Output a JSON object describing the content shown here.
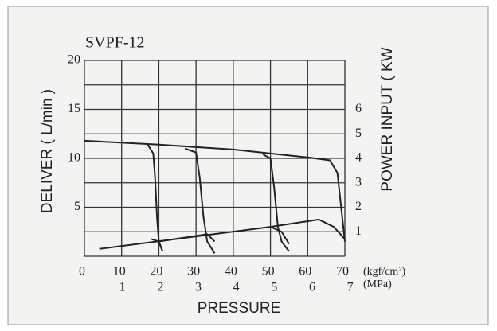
{
  "chart_data": {
    "type": "line",
    "title": "SVPF-12",
    "y_label": "DELIVER ( L/min )",
    "y2_label": "POWER INPUT ( KW",
    "x_label": "PRESSURE",
    "x_unit": "(kgf/cm²)",
    "x2_unit": "(MPa)",
    "xlim": [
      0,
      70
    ],
    "xticks": [
      0,
      10,
      20,
      30,
      40,
      50,
      60,
      70
    ],
    "x2lim": [
      0,
      6.86
    ],
    "x2ticks": [
      1,
      2,
      3,
      4,
      5,
      6,
      7
    ],
    "ylim": [
      0,
      20
    ],
    "yticks": [
      5,
      10,
      15,
      20
    ],
    "ygrid": [
      0,
      2.5,
      5,
      7.5,
      10,
      12.5,
      15,
      17.5,
      20
    ],
    "y2lim": [
      0,
      8
    ],
    "y2ticks": [
      1,
      2,
      3,
      4,
      5,
      6
    ],
    "grid": true,
    "series": [
      {
        "color": "#222",
        "x": [
          0,
          20,
          40,
          60,
          66,
          68,
          69,
          70
        ],
        "values": [
          11.8,
          11.4,
          10.9,
          10.1,
          9.8,
          8.5,
          5,
          1.5
        ]
      },
      {
        "color": "#222",
        "x": [
          17,
          18.5,
          19,
          19.5,
          20,
          21
        ],
        "values": [
          11.4,
          10.5,
          8,
          4,
          1.5,
          0.5
        ]
      },
      {
        "color": "#222",
        "x": [
          27,
          30,
          31,
          32,
          33,
          35
        ],
        "values": [
          11,
          10.6,
          8,
          4,
          1.5,
          0.3
        ]
      },
      {
        "color": "#222",
        "x": [
          48,
          50,
          51,
          52,
          53,
          55
        ],
        "values": [
          10.4,
          10,
          7,
          3,
          1.5,
          0.5
        ]
      },
      {
        "color": "#222",
        "axis": "y2",
        "x": [
          4,
          50,
          63,
          67,
          70
        ],
        "values": [
          0.3,
          1.2,
          1.5,
          1.2,
          0.7
        ]
      },
      {
        "color": "#222",
        "axis": "y2",
        "x": [
          18,
          20,
          21
        ],
        "values": [
          0.7,
          0.6,
          0.2
        ]
      },
      {
        "color": "#222",
        "axis": "y2",
        "x": [
          20,
          33,
          35
        ],
        "values": [
          0.6,
          0.9,
          0.6
        ]
      },
      {
        "color": "#222",
        "axis": "y2",
        "x": [
          50,
          53,
          55
        ],
        "values": [
          1.2,
          1.0,
          0.5
        ]
      }
    ]
  }
}
